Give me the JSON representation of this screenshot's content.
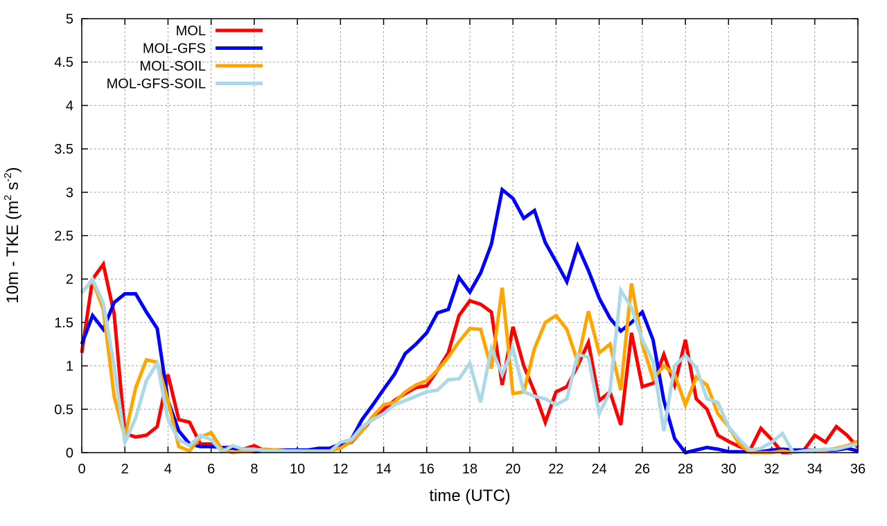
{
  "chart_data": {
    "type": "line",
    "title": "",
    "xlabel": "time (UTC)",
    "ylabel": "10m - TKE (m² s⁻²)",
    "ylabel_parts": {
      "base": "10m - TKE (m",
      "sup1": "2",
      "mid": " s",
      "sup2": "-2",
      "end": ")"
    },
    "xlim": [
      0,
      36
    ],
    "ylim": [
      0,
      5
    ],
    "xticks": [
      0,
      2,
      4,
      6,
      8,
      10,
      12,
      14,
      16,
      18,
      20,
      22,
      24,
      26,
      28,
      30,
      32,
      34,
      36
    ],
    "yticks": [
      0,
      0.5,
      1,
      1.5,
      2,
      2.5,
      3,
      3.5,
      4,
      4.5,
      5
    ],
    "ytick_labels": [
      "0",
      "0.5",
      "1",
      "1.5",
      "2",
      "2.5",
      "3",
      "3.5",
      "4",
      "4.5",
      "5"
    ],
    "grid": true,
    "legend_placement": "top-left",
    "x_step": 0.5,
    "series": [
      {
        "name": "MOL",
        "color": "#ff0000",
        "values": [
          1.15,
          2.0,
          2.17,
          1.6,
          0.22,
          0.18,
          0.2,
          0.3,
          0.9,
          0.38,
          0.35,
          0.1,
          0.1,
          0.05,
          0.07,
          0.04,
          0.08,
          0.02,
          0.02,
          0.02,
          0.02,
          0.03,
          0.04,
          0.04,
          0.08,
          0.12,
          0.25,
          0.4,
          0.5,
          0.6,
          0.68,
          0.75,
          0.77,
          0.95,
          1.15,
          1.58,
          1.75,
          1.71,
          1.62,
          0.78,
          1.45,
          1.0,
          0.7,
          0.35,
          0.7,
          0.76,
          1.0,
          1.27,
          0.6,
          0.7,
          0.32,
          1.38,
          0.76,
          0.8,
          1.13,
          0.78,
          1.3,
          0.62,
          0.5,
          0.2,
          0.13,
          0.07,
          0.03,
          0.28,
          0.15,
          0.0,
          0.0,
          0.03,
          0.2,
          0.12,
          0.3,
          0.2,
          0.06
        ]
      },
      {
        "name": "MOL-GFS",
        "color": "#0000ff",
        "values": [
          1.25,
          1.58,
          1.42,
          1.73,
          1.83,
          1.83,
          1.62,
          1.43,
          0.6,
          0.25,
          0.1,
          0.07,
          0.07,
          0.06,
          0.05,
          0.04,
          0.01,
          0.02,
          0.03,
          0.03,
          0.03,
          0.03,
          0.05,
          0.05,
          0.1,
          0.15,
          0.38,
          0.55,
          0.73,
          0.9,
          1.14,
          1.25,
          1.38,
          1.61,
          1.65,
          2.02,
          1.85,
          2.07,
          2.4,
          3.03,
          2.93,
          2.7,
          2.79,
          2.42,
          2.2,
          1.97,
          2.38,
          2.1,
          1.78,
          1.55,
          1.4,
          1.5,
          1.62,
          1.3,
          0.6,
          0.16,
          0.0,
          0.03,
          0.06,
          0.04,
          0.01,
          0.01,
          0.01,
          0.01,
          0.03,
          0.04,
          0.03,
          0.03,
          0.03,
          0.03,
          0.03,
          0.05,
          0.02
        ]
      },
      {
        "name": "MOL-SOIL",
        "color": "#ffa500",
        "values": [
          1.85,
          1.98,
          1.65,
          0.65,
          0.18,
          0.75,
          1.07,
          1.04,
          0.6,
          0.07,
          0.02,
          0.18,
          0.23,
          0.04,
          0.0,
          0.02,
          0.03,
          0.04,
          0.03,
          0.02,
          0.02,
          0.02,
          0.02,
          0.02,
          0.05,
          0.13,
          0.25,
          0.42,
          0.55,
          0.58,
          0.7,
          0.78,
          0.83,
          0.95,
          1.1,
          1.28,
          1.43,
          1.42,
          0.97,
          1.9,
          0.68,
          0.7,
          1.2,
          1.5,
          1.58,
          1.42,
          1.05,
          1.63,
          1.15,
          1.25,
          0.72,
          1.95,
          1.25,
          0.85,
          1.0,
          0.9,
          0.55,
          0.87,
          0.78,
          0.45,
          0.3,
          0.1,
          0.0,
          0.0,
          0.0,
          0.02,
          0.0,
          0.02,
          0.03,
          0.03,
          0.05,
          0.08,
          0.13
        ]
      },
      {
        "name": "MOL-GFS-SOIL",
        "color": "#add8e6",
        "values": [
          1.84,
          2.0,
          1.72,
          1.0,
          0.12,
          0.4,
          0.83,
          1.03,
          0.38,
          0.15,
          0.08,
          0.2,
          0.15,
          0.01,
          0.08,
          0.04,
          0.04,
          0.02,
          0.02,
          0.02,
          0.02,
          0.01,
          0.01,
          0.01,
          0.12,
          0.15,
          0.3,
          0.38,
          0.45,
          0.55,
          0.6,
          0.65,
          0.7,
          0.72,
          0.84,
          0.85,
          1.03,
          0.58,
          1.2,
          0.9,
          1.2,
          0.7,
          0.65,
          0.62,
          0.55,
          0.62,
          1.13,
          1.1,
          0.45,
          0.7,
          1.87,
          1.67,
          1.3,
          1.05,
          0.25,
          1.0,
          1.12,
          0.98,
          0.62,
          0.58,
          0.3,
          0.15,
          0.03,
          0.05,
          0.12,
          0.22,
          0.0,
          0.02,
          0.03,
          0.04,
          0.04,
          0.07,
          0.1
        ]
      }
    ]
  }
}
